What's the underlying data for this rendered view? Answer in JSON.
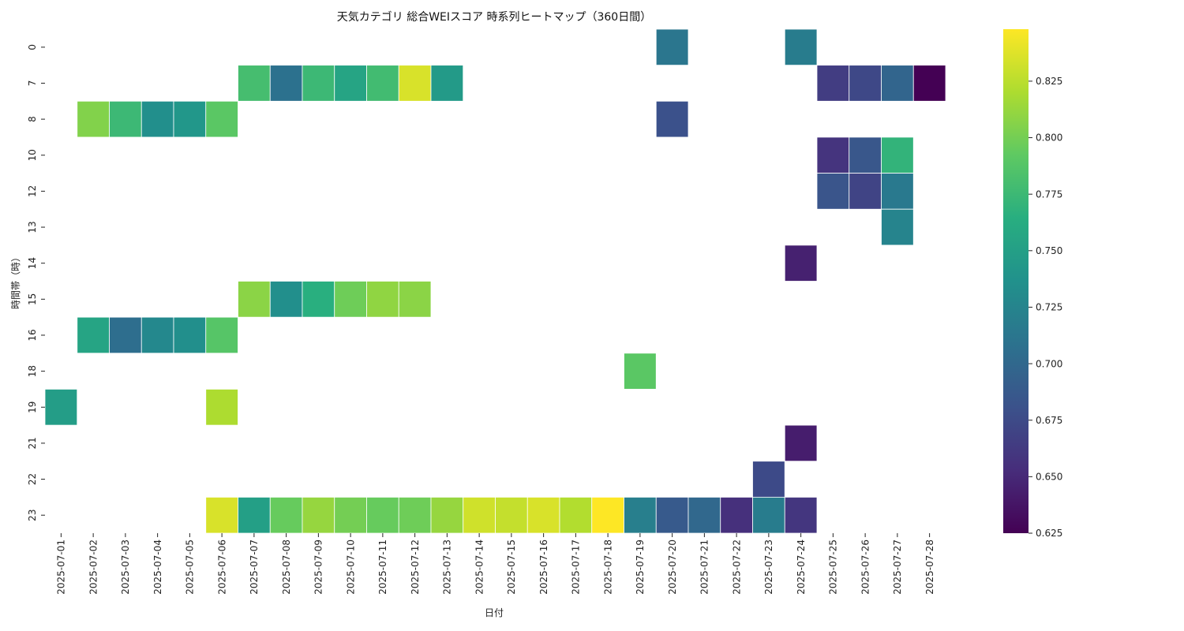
{
  "chart_data": {
    "type": "heatmap",
    "title": "天気カテゴリ 総合WEIスコア 時系列ヒートマップ（360日間）",
    "xlabel": "日付",
    "ylabel": "時間帯（時）",
    "x": [
      "2025-07-01",
      "2025-07-02",
      "2025-07-03",
      "2025-07-04",
      "2025-07-05",
      "2025-07-06",
      "2025-07-07",
      "2025-07-08",
      "2025-07-09",
      "2025-07-10",
      "2025-07-11",
      "2025-07-12",
      "2025-07-13",
      "2025-07-14",
      "2025-07-15",
      "2025-07-16",
      "2025-07-17",
      "2025-07-18",
      "2025-07-19",
      "2025-07-20",
      "2025-07-21",
      "2025-07-22",
      "2025-07-23",
      "2025-07-24",
      "2025-07-25",
      "2025-07-26",
      "2025-07-27",
      "2025-07-28"
    ],
    "y": [
      "0",
      "7",
      "8",
      "10",
      "12",
      "13",
      "14",
      "15",
      "16",
      "18",
      "19",
      "21",
      "22",
      "23"
    ],
    "colormap": "viridis",
    "vmin": 0.625,
    "vmax": 0.848,
    "colorbar_ticks": [
      "0.625",
      "0.650",
      "0.675",
      "0.700",
      "0.725",
      "0.750",
      "0.775",
      "0.800",
      "0.825"
    ],
    "cells": [
      {
        "x": "2025-07-20",
        "y": "0",
        "value": 0.712
      },
      {
        "x": "2025-07-24",
        "y": "0",
        "value": 0.718
      },
      {
        "x": "2025-07-07",
        "y": "7",
        "value": 0.78
      },
      {
        "x": "2025-07-08",
        "y": "7",
        "value": 0.708
      },
      {
        "x": "2025-07-09",
        "y": "7",
        "value": 0.775
      },
      {
        "x": "2025-07-10",
        "y": "7",
        "value": 0.755
      },
      {
        "x": "2025-07-11",
        "y": "7",
        "value": 0.778
      },
      {
        "x": "2025-07-12",
        "y": "7",
        "value": 0.835
      },
      {
        "x": "2025-07-13",
        "y": "7",
        "value": 0.745
      },
      {
        "x": "2025-07-25",
        "y": "7",
        "value": 0.665
      },
      {
        "x": "2025-07-26",
        "y": "7",
        "value": 0.673
      },
      {
        "x": "2025-07-27",
        "y": "7",
        "value": 0.697
      },
      {
        "x": "2025-07-28",
        "y": "7",
        "value": 0.625
      },
      {
        "x": "2025-07-02",
        "y": "8",
        "value": 0.805
      },
      {
        "x": "2025-07-03",
        "y": "8",
        "value": 0.775
      },
      {
        "x": "2025-07-04",
        "y": "8",
        "value": 0.735
      },
      {
        "x": "2025-07-05",
        "y": "8",
        "value": 0.742
      },
      {
        "x": "2025-07-06",
        "y": "8",
        "value": 0.79
      },
      {
        "x": "2025-07-20",
        "y": "8",
        "value": 0.68
      },
      {
        "x": "2025-07-25",
        "y": "10",
        "value": 0.658
      },
      {
        "x": "2025-07-26",
        "y": "10",
        "value": 0.685
      },
      {
        "x": "2025-07-27",
        "y": "10",
        "value": 0.77
      },
      {
        "x": "2025-07-25",
        "y": "12",
        "value": 0.683
      },
      {
        "x": "2025-07-26",
        "y": "12",
        "value": 0.67
      },
      {
        "x": "2025-07-27",
        "y": "12",
        "value": 0.715
      },
      {
        "x": "2025-07-27",
        "y": "13",
        "value": 0.725
      },
      {
        "x": "2025-07-24",
        "y": "14",
        "value": 0.645
      },
      {
        "x": "2025-07-07",
        "y": "15",
        "value": 0.808
      },
      {
        "x": "2025-07-08",
        "y": "15",
        "value": 0.735
      },
      {
        "x": "2025-07-09",
        "y": "15",
        "value": 0.765
      },
      {
        "x": "2025-07-10",
        "y": "15",
        "value": 0.798
      },
      {
        "x": "2025-07-11",
        "y": "15",
        "value": 0.81
      },
      {
        "x": "2025-07-12",
        "y": "15",
        "value": 0.808
      },
      {
        "x": "2025-07-02",
        "y": "16",
        "value": 0.755
      },
      {
        "x": "2025-07-03",
        "y": "16",
        "value": 0.705
      },
      {
        "x": "2025-07-04",
        "y": "16",
        "value": 0.728
      },
      {
        "x": "2025-07-05",
        "y": "16",
        "value": 0.735
      },
      {
        "x": "2025-07-06",
        "y": "16",
        "value": 0.788
      },
      {
        "x": "2025-07-19",
        "y": "18",
        "value": 0.79
      },
      {
        "x": "2025-07-01",
        "y": "19",
        "value": 0.748
      },
      {
        "x": "2025-07-06",
        "y": "19",
        "value": 0.82
      },
      {
        "x": "2025-07-24",
        "y": "21",
        "value": 0.643
      },
      {
        "x": "2025-07-23",
        "y": "22",
        "value": 0.675
      },
      {
        "x": "2025-07-06",
        "y": "23",
        "value": 0.835
      },
      {
        "x": "2025-07-07",
        "y": "23",
        "value": 0.75
      },
      {
        "x": "2025-07-08",
        "y": "23",
        "value": 0.795
      },
      {
        "x": "2025-07-09",
        "y": "23",
        "value": 0.812
      },
      {
        "x": "2025-07-10",
        "y": "23",
        "value": 0.8
      },
      {
        "x": "2025-07-11",
        "y": "23",
        "value": 0.795
      },
      {
        "x": "2025-07-12",
        "y": "23",
        "value": 0.798
      },
      {
        "x": "2025-07-13",
        "y": "23",
        "value": 0.812
      },
      {
        "x": "2025-07-14",
        "y": "23",
        "value": 0.832
      },
      {
        "x": "2025-07-15",
        "y": "23",
        "value": 0.828
      },
      {
        "x": "2025-07-16",
        "y": "23",
        "value": 0.835
      },
      {
        "x": "2025-07-17",
        "y": "23",
        "value": 0.822
      },
      {
        "x": "2025-07-18",
        "y": "23",
        "value": 0.848
      },
      {
        "x": "2025-07-19",
        "y": "23",
        "value": 0.72
      },
      {
        "x": "2025-07-20",
        "y": "23",
        "value": 0.688
      },
      {
        "x": "2025-07-21",
        "y": "23",
        "value": 0.7
      },
      {
        "x": "2025-07-22",
        "y": "23",
        "value": 0.655
      },
      {
        "x": "2025-07-23",
        "y": "23",
        "value": 0.718
      },
      {
        "x": "2025-07-24",
        "y": "23",
        "value": 0.66
      }
    ]
  }
}
